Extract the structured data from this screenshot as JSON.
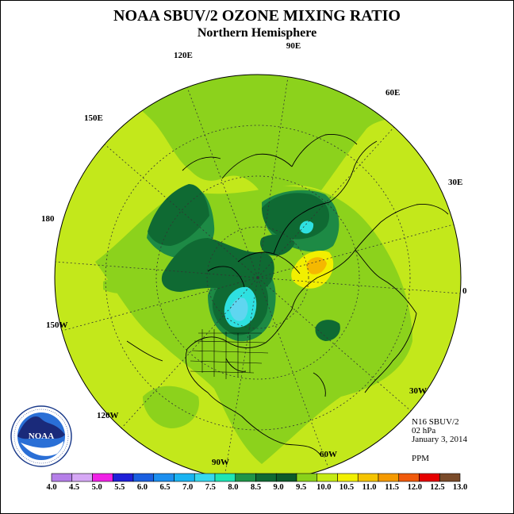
{
  "title": "NOAA SBUV/2 OZONE MIXING RATIO",
  "subtitle": "Northern Hemisphere",
  "longitude_labels": [
    "90E",
    "60E",
    "30E",
    "0",
    "30W",
    "60W",
    "90W",
    "120W",
    "150W",
    "180",
    "150E",
    "120E"
  ],
  "info": {
    "instrument": "N16 SBUV/2",
    "level": "02 hPa",
    "date": "January 3, 2014",
    "units": "PPM"
  },
  "logo": {
    "text": "NOAA",
    "ring_text": "NATIONAL OCEANIC AND ATMOSPHERIC ADMINISTRATION · U.S. DEPARTMENT OF COMMERCE"
  },
  "colorbar": {
    "labels": [
      "4.0",
      "4.5",
      "5.0",
      "5.5",
      "6.0",
      "6.5",
      "7.0",
      "7.5",
      "8.0",
      "8.5",
      "9.0",
      "9.5",
      "10.0",
      "10.5",
      "11.0",
      "11.5",
      "12.0",
      "12.5",
      "13.0"
    ],
    "colors": [
      "#b57fe8",
      "#d6a8f5",
      "#f021e6",
      "#2020d8",
      "#1a5fe0",
      "#1c8fef",
      "#1ab4f2",
      "#36d8ee",
      "#1fe5b4",
      "#1f9548",
      "#0f6a33",
      "#0c5a2a",
      "#8ad21a",
      "#c5eb14",
      "#f2f000",
      "#f5c400",
      "#f59a00",
      "#f05a0c",
      "#e60000",
      "#7a4b2a"
    ]
  },
  "colors": {
    "background_field": "#c3e81b",
    "mid_green": "#8cd21c",
    "dark_green": "#0f6a33",
    "forest_green": "#1d8a45",
    "cyan": "#2ee0e0",
    "light_blue": "#5fd6f0",
    "yellow": "#f2ef00",
    "orange": "#f5b800"
  }
}
